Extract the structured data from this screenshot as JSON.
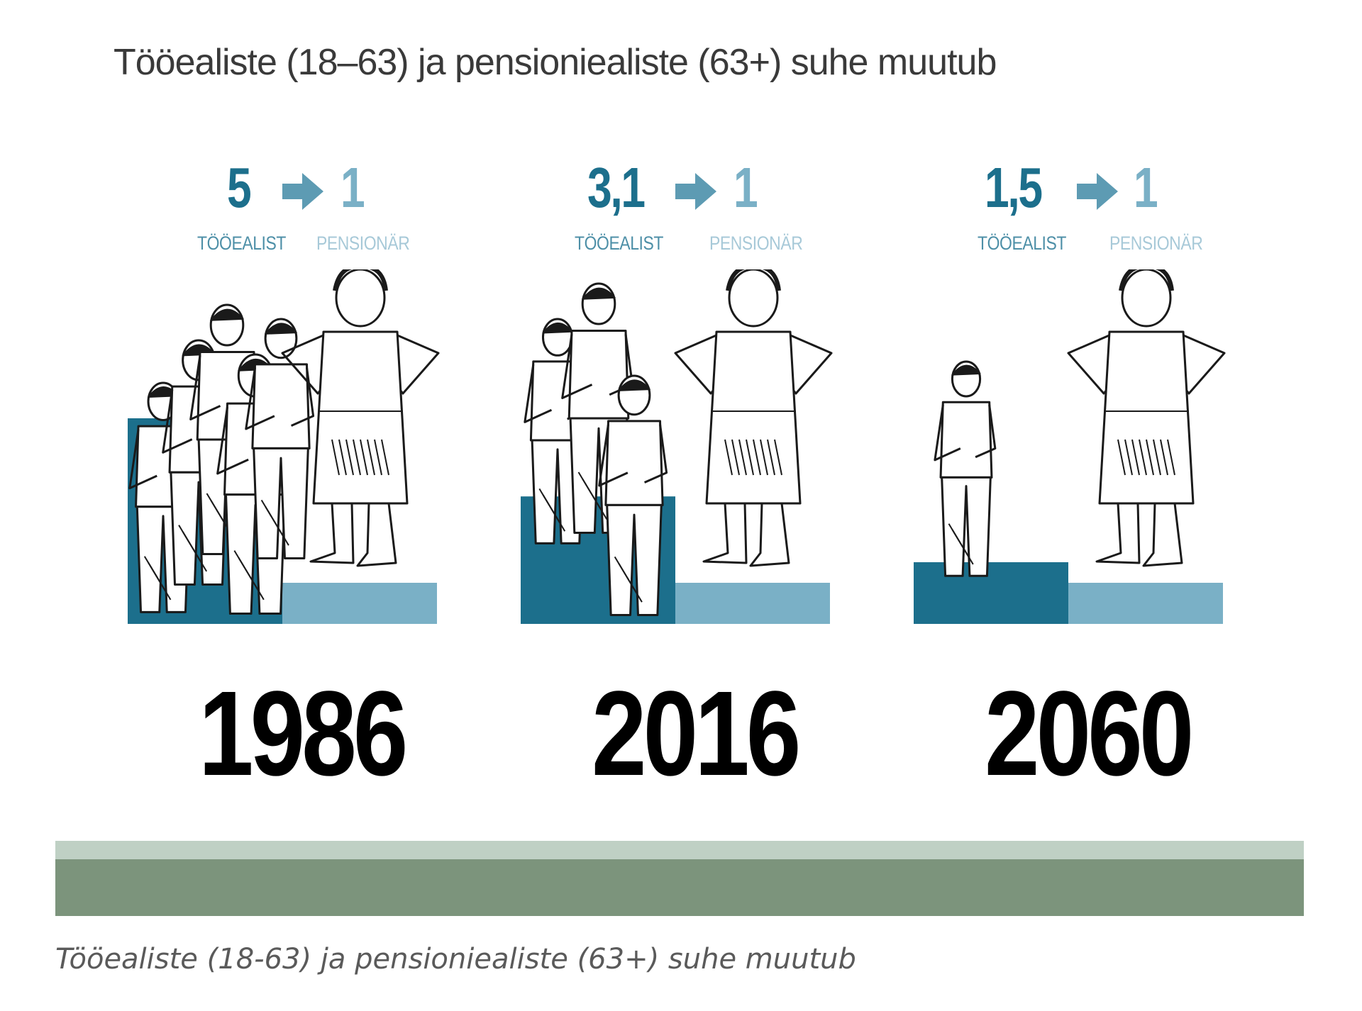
{
  "title": "Tööealiste (18–63) ja pensioniealiste (63+) suhe muutub",
  "caption": "Tööealiste (18-63) ja pensioniealiste (63+) suhe muutub",
  "colors": {
    "working": "#1c6f8c",
    "pensioner": "#7ab0c6",
    "band_light": "#bfd0c4",
    "band_dark": "#7c947c"
  },
  "icons": {
    "arrow": "arrow-right-icon",
    "working_figure": "working-person-icon",
    "pensioner_figure": "pensioner-icon"
  },
  "chart_data": {
    "type": "bar",
    "title": "Tööealiste (18–63) ja pensioniealiste (63+) suhe muutub",
    "categories": [
      "1986",
      "2016",
      "2060"
    ],
    "series": [
      {
        "name": "TÖÖEALIST",
        "values": [
          5,
          3.1,
          1.5
        ]
      },
      {
        "name": "PENSIONÄR",
        "values": [
          1,
          1,
          1
        ]
      }
    ],
    "ratio_labels": [
      {
        "working": "5",
        "pensioner": "1"
      },
      {
        "working": "3,1",
        "pensioner": "1"
      },
      {
        "working": "1,5",
        "pensioner": "1"
      }
    ],
    "caption_working": "TÖÖEALIST",
    "caption_pensioner": "PENSIONÄR",
    "ylim": [
      0,
      5
    ]
  }
}
